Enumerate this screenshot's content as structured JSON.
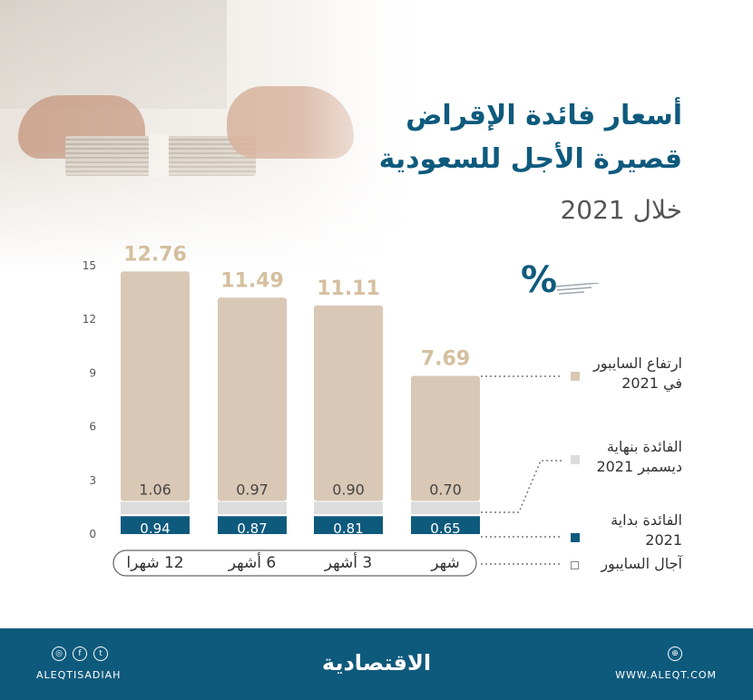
{
  "title_line1": "أسعار فائدة الإقراض",
  "title_line2": "قصيرة الأجل للسعودية",
  "title_line3": "خلال 2021",
  "percent_symbol": "%",
  "colors": {
    "rise": "#d9c8b5",
    "end": "#dcdcdc",
    "start": "#0e5a7d",
    "title": "#0e5a7d"
  },
  "chart_data": {
    "type": "bar",
    "categories": [
      "12 شهرا",
      "6 أشهر",
      "3 أشهر",
      "شهر"
    ],
    "series": [
      {
        "name": "الفائدة بداية 2021",
        "values": [
          0.94,
          0.87,
          0.81,
          0.65
        ]
      },
      {
        "name": "الفائدة بنهاية ديسمبر 2021",
        "values": [
          1.06,
          0.97,
          0.9,
          0.7
        ]
      },
      {
        "name": "ارتفاع السايبور في 2021",
        "values": [
          12.76,
          11.49,
          11.11,
          7.69
        ]
      }
    ],
    "yticks": [
      0,
      3,
      6,
      9,
      12,
      15
    ],
    "ylim": [
      0,
      15
    ],
    "axis_label": "آجال السايبور"
  },
  "legend": {
    "rise": "ارتفاع السايبور في 2021",
    "end": "الفائدة بنهاية ديسمبر 2021",
    "start": "الفائدة بداية 2021",
    "terms": "آجال السايبور"
  },
  "footer": {
    "handle": "ALEQTISADIAH",
    "logo": "الاقتصادية",
    "site": "WWW.ALEQT.COM"
  }
}
